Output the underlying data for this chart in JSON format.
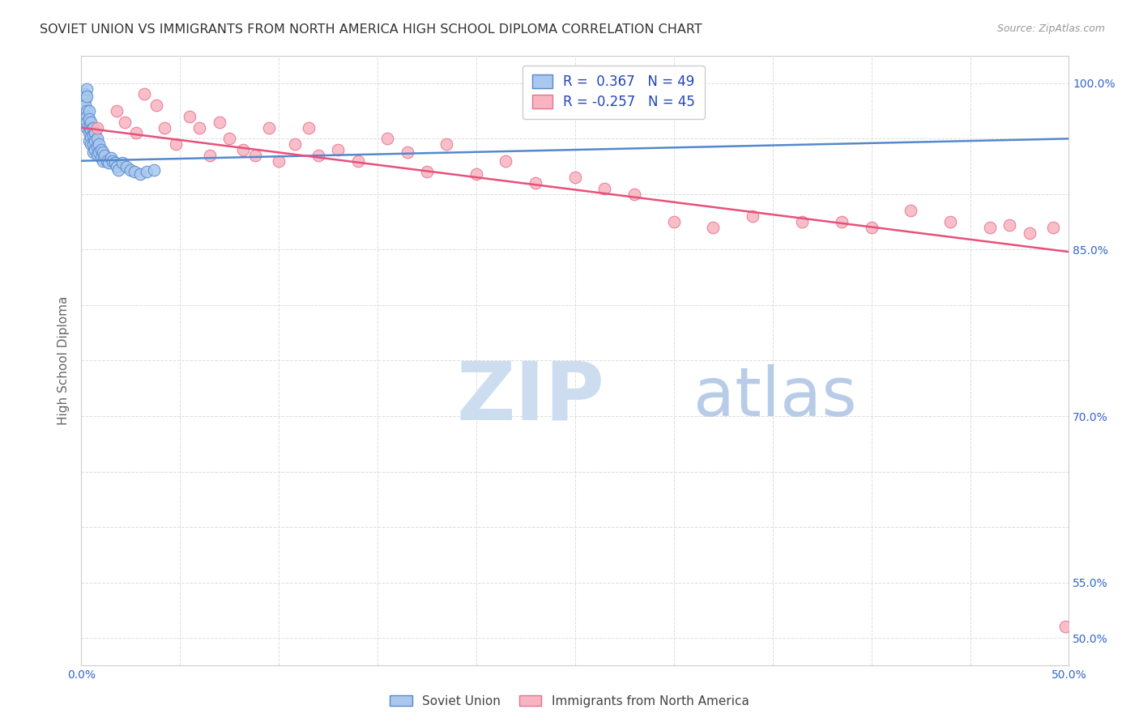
{
  "title": "SOVIET UNION VS IMMIGRANTS FROM NORTH AMERICA HIGH SCHOOL DIPLOMA CORRELATION CHART",
  "source": "Source: ZipAtlas.com",
  "ylabel": "High School Diploma",
  "xmin": 0.0,
  "xmax": 0.5,
  "ymin": 0.475,
  "ymax": 1.025,
  "ytick_positions": [
    0.5,
    0.55,
    0.6,
    0.65,
    0.7,
    0.75,
    0.8,
    0.85,
    0.9,
    0.95,
    1.0
  ],
  "ytick_labels": [
    "50.0%",
    "55.0%",
    "",
    "",
    "70.0%",
    "",
    "",
    "85.0%",
    "",
    "",
    "100.0%"
  ],
  "xtick_positions": [
    0.0,
    0.05,
    0.1,
    0.15,
    0.2,
    0.25,
    0.3,
    0.35,
    0.4,
    0.45,
    0.5
  ],
  "xtick_labels": [
    "0.0%",
    "",
    "",
    "",
    "",
    "",
    "",
    "",
    "",
    "",
    "50.0%"
  ],
  "series1_label": "Soviet Union",
  "series2_label": "Immigrants from North America",
  "R1": 0.367,
  "N1": 49,
  "R2": -0.257,
  "N2": 45,
  "series1_color": "#aac8ee",
  "series2_color": "#f8b4c0",
  "series1_edge": "#5588cc",
  "series2_edge": "#e87090",
  "trendline1_color": "#5588cc",
  "trendline2_color": "#e8507a",
  "background_color": "#ffffff",
  "grid_color": "#dddddd",
  "title_color": "#333333",
  "axis_label_color": "#666666",
  "tick_label_color": "#3366cc",
  "source_color": "#999999",
  "watermark_zip_color": "#ccddf0",
  "watermark_atlas_color": "#b8cce8",
  "scatter1_x": [
    0.002,
    0.002,
    0.002,
    0.003,
    0.003,
    0.003,
    0.003,
    0.003,
    0.003,
    0.004,
    0.004,
    0.004,
    0.004,
    0.004,
    0.005,
    0.005,
    0.005,
    0.005,
    0.006,
    0.006,
    0.006,
    0.006,
    0.007,
    0.007,
    0.007,
    0.008,
    0.008,
    0.008,
    0.009,
    0.009,
    0.01,
    0.01,
    0.011,
    0.011,
    0.012,
    0.013,
    0.014,
    0.015,
    0.016,
    0.017,
    0.018,
    0.019,
    0.021,
    0.023,
    0.025,
    0.027,
    0.03,
    0.033,
    0.037
  ],
  "scatter1_y": [
    0.99,
    0.985,
    0.98,
    0.995,
    0.988,
    0.975,
    0.97,
    0.965,
    0.96,
    0.975,
    0.968,
    0.96,
    0.955,
    0.948,
    0.965,
    0.958,
    0.952,
    0.945,
    0.96,
    0.953,
    0.945,
    0.938,
    0.955,
    0.948,
    0.94,
    0.95,
    0.943,
    0.936,
    0.945,
    0.938,
    0.94,
    0.933,
    0.938,
    0.93,
    0.935,
    0.93,
    0.928,
    0.933,
    0.93,
    0.928,
    0.925,
    0.922,
    0.928,
    0.925,
    0.922,
    0.92,
    0.918,
    0.92,
    0.922
  ],
  "scatter2_x": [
    0.008,
    0.018,
    0.022,
    0.028,
    0.032,
    0.038,
    0.042,
    0.048,
    0.055,
    0.06,
    0.065,
    0.07,
    0.075,
    0.082,
    0.088,
    0.095,
    0.1,
    0.108,
    0.115,
    0.12,
    0.13,
    0.14,
    0.155,
    0.165,
    0.175,
    0.185,
    0.2,
    0.215,
    0.23,
    0.25,
    0.265,
    0.28,
    0.3,
    0.32,
    0.34,
    0.365,
    0.385,
    0.4,
    0.42,
    0.44,
    0.46,
    0.47,
    0.48,
    0.492,
    0.498
  ],
  "scatter2_y": [
    0.96,
    0.975,
    0.965,
    0.955,
    0.99,
    0.98,
    0.96,
    0.945,
    0.97,
    0.96,
    0.935,
    0.965,
    0.95,
    0.94,
    0.935,
    0.96,
    0.93,
    0.945,
    0.96,
    0.935,
    0.94,
    0.93,
    0.95,
    0.938,
    0.92,
    0.945,
    0.918,
    0.93,
    0.91,
    0.915,
    0.905,
    0.9,
    0.875,
    0.87,
    0.88,
    0.875,
    0.875,
    0.87,
    0.885,
    0.875,
    0.87,
    0.872,
    0.865,
    0.87,
    0.51
  ],
  "trendline1_x": [
    0.0,
    0.5
  ],
  "trendline1_y": [
    0.93,
    0.95
  ],
  "trendline2_x": [
    0.0,
    0.5
  ],
  "trendline2_y": [
    0.96,
    0.848
  ]
}
